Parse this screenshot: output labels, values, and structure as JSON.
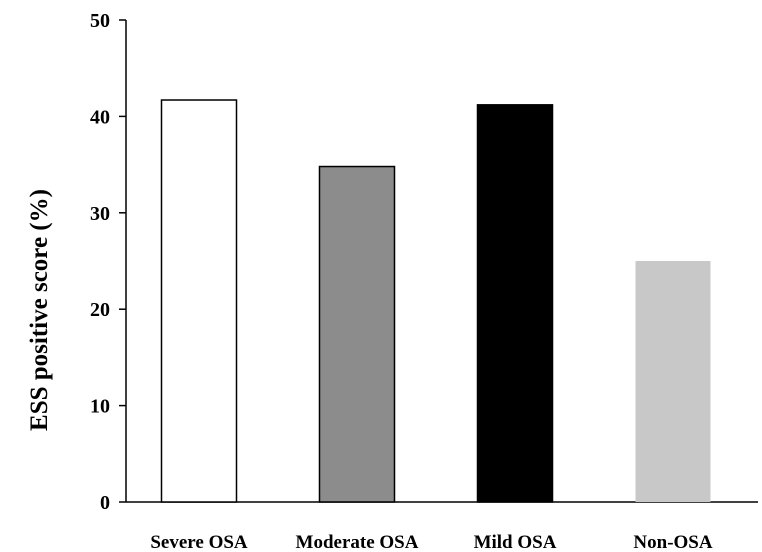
{
  "chart_data": {
    "type": "bar",
    "title": "",
    "xlabel": "",
    "ylabel": "ESS positive score (%)",
    "categories": [
      "Severe OSA",
      "Moderate OSA",
      "Mild OSA",
      "Non-OSA"
    ],
    "values": [
      41.7,
      34.8,
      41.2,
      25.0
    ],
    "colors": [
      "#ffffff",
      "#8c8c8c",
      "#000000",
      "#c8c8c8"
    ],
    "ylim": [
      0,
      50
    ],
    "yticks": [
      0,
      10,
      20,
      30,
      40,
      50
    ],
    "grid": false,
    "legend": "none"
  }
}
